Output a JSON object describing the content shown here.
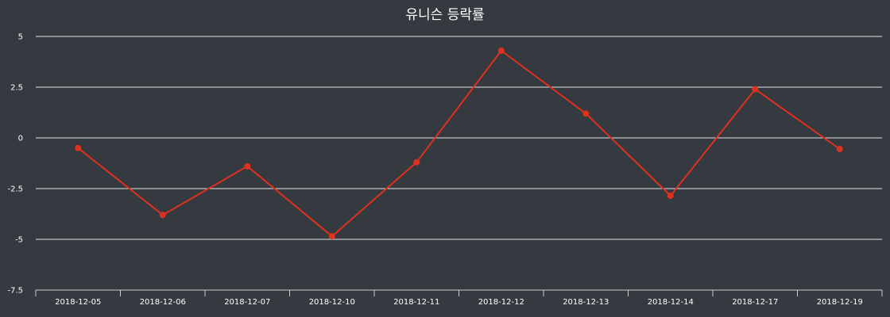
{
  "chart_data": {
    "type": "line",
    "title": "유니슨 등락률",
    "xlabel": "",
    "ylabel": "",
    "categories": [
      "2018-12-05",
      "2018-12-06",
      "2018-12-07",
      "2018-12-10",
      "2018-12-11",
      "2018-12-12",
      "2018-12-13",
      "2018-12-14",
      "2018-12-17",
      "2018-12-19"
    ],
    "series": [
      {
        "values": [
          -0.5,
          -3.8,
          -1.4,
          -4.85,
          -1.2,
          4.3,
          1.2,
          -2.85,
          2.4,
          -0.55
        ],
        "color": "#e0301e"
      }
    ],
    "ylim": [
      -7.5,
      5
    ],
    "yticks": [
      5,
      2.5,
      0,
      -2.5,
      -5,
      -7.5
    ],
    "ytick_labels": [
      "5",
      "2.5",
      "0",
      "-2.5",
      "-5",
      "-7.5"
    ],
    "grid": true,
    "legend": "none"
  }
}
